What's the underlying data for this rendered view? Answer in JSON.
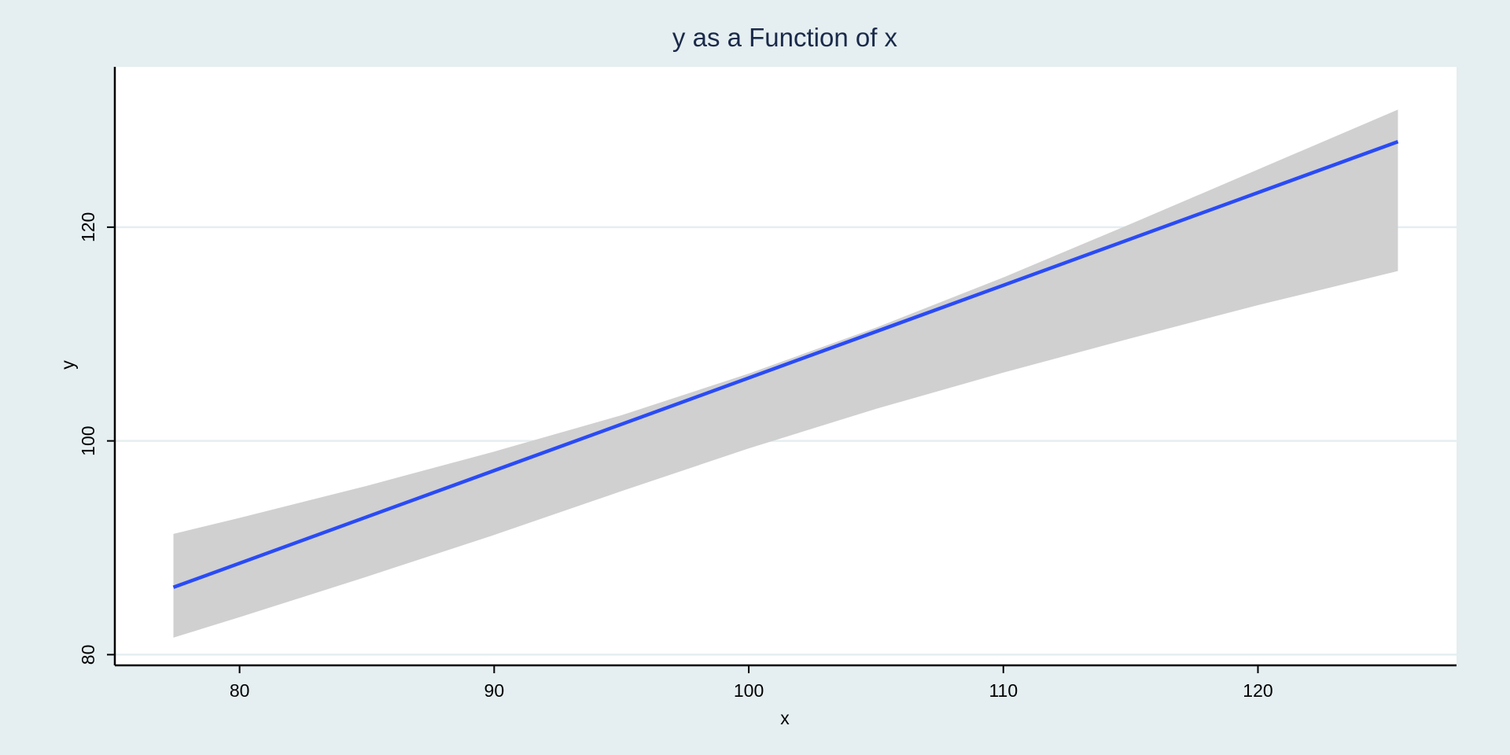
{
  "chart_data": {
    "type": "line",
    "title": "y as a Function of x",
    "xlabel": "x",
    "ylabel": "y",
    "xlim": [
      75.1,
      127.8
    ],
    "ylim": [
      79,
      135
    ],
    "xticks": [
      80,
      90,
      100,
      110,
      120
    ],
    "yticks": [
      80,
      100,
      120
    ],
    "grid": "horizontal",
    "legend": "none",
    "series": [
      {
        "kind": "fitted-line",
        "x": [
          77.4,
          125.5
        ],
        "y": [
          86.3,
          128.0
        ]
      },
      {
        "kind": "confidence-band",
        "x": [
          77.4,
          80,
          85,
          90,
          95,
          100,
          105,
          110,
          115,
          120,
          125.5
        ],
        "upper": [
          91.3,
          92.8,
          95.8,
          99.0,
          102.4,
          106.3,
          110.6,
          115.3,
          120.3,
          125.4,
          131.0
        ],
        "lower": [
          81.6,
          83.5,
          87.3,
          91.2,
          95.3,
          99.3,
          103.0,
          106.4,
          109.6,
          112.7,
          115.9
        ]
      }
    ],
    "colors": {
      "background": "#e5eef0",
      "plot_area": "#ffffff",
      "gridline": "#e5eef0",
      "line": "#2a4bf5",
      "band": "#d0d0d0",
      "axis": "#000000",
      "title": "#1a2a4a"
    }
  }
}
